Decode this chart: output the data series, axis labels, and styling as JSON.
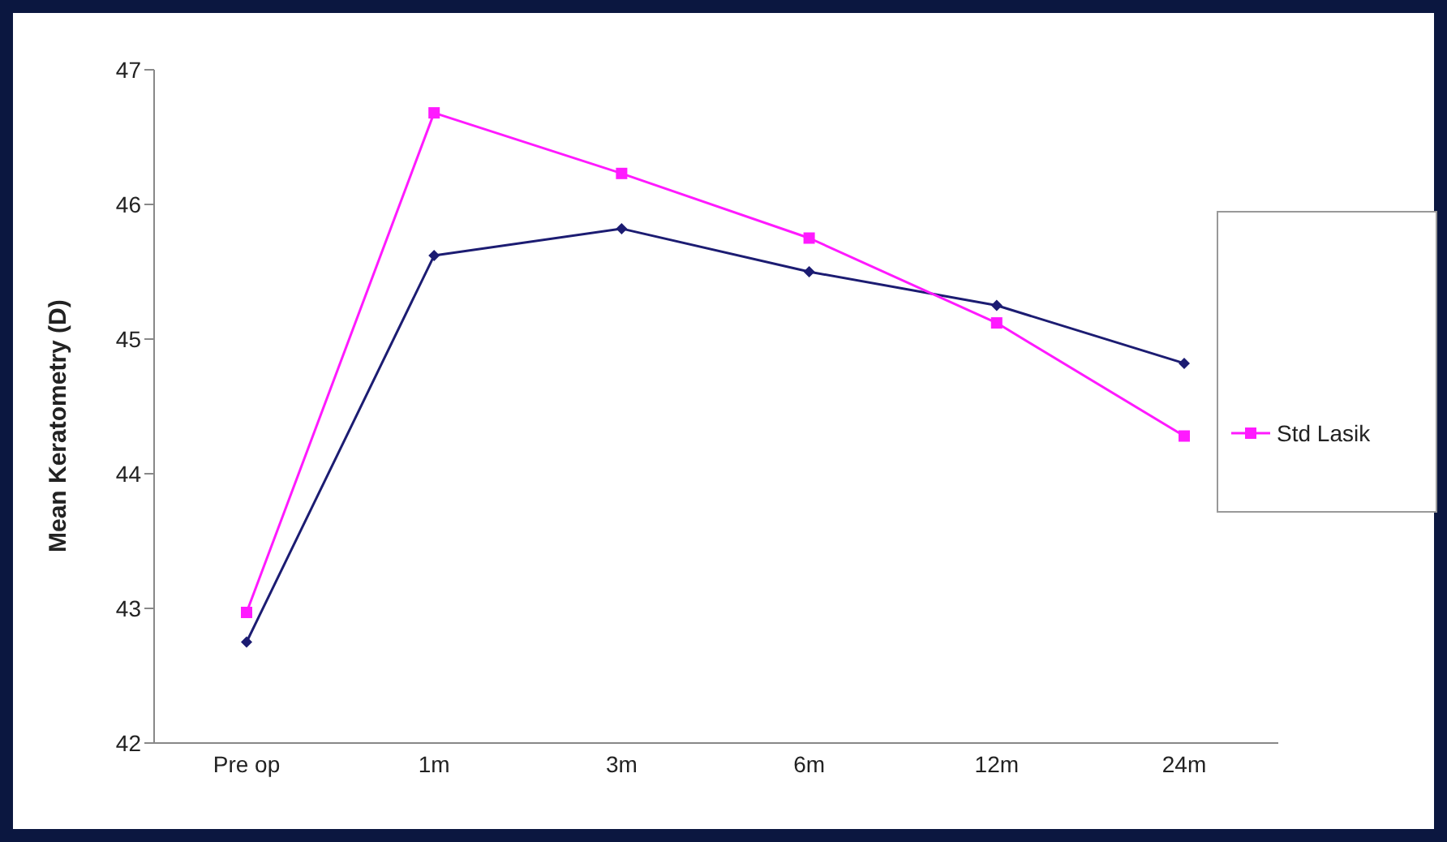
{
  "chart_data": {
    "type": "line",
    "ylabel": "Mean Keratometry (D)",
    "categories": [
      "Pre op",
      "1m",
      "3m",
      "6m",
      "12m",
      "24m"
    ],
    "ylim": [
      42,
      47
    ],
    "yticks": [
      42,
      43,
      44,
      45,
      46,
      47
    ],
    "legend": "right",
    "series": [
      {
        "color": "#1c1c72",
        "marker": "diamond",
        "values": [
          42.75,
          45.62,
          45.82,
          45.5,
          45.25,
          44.82
        ]
      },
      {
        "name": "Std Lasik",
        "color": "#ff1aff",
        "marker": "square",
        "values": [
          42.97,
          46.68,
          46.23,
          45.75,
          45.12,
          44.28
        ]
      }
    ]
  }
}
